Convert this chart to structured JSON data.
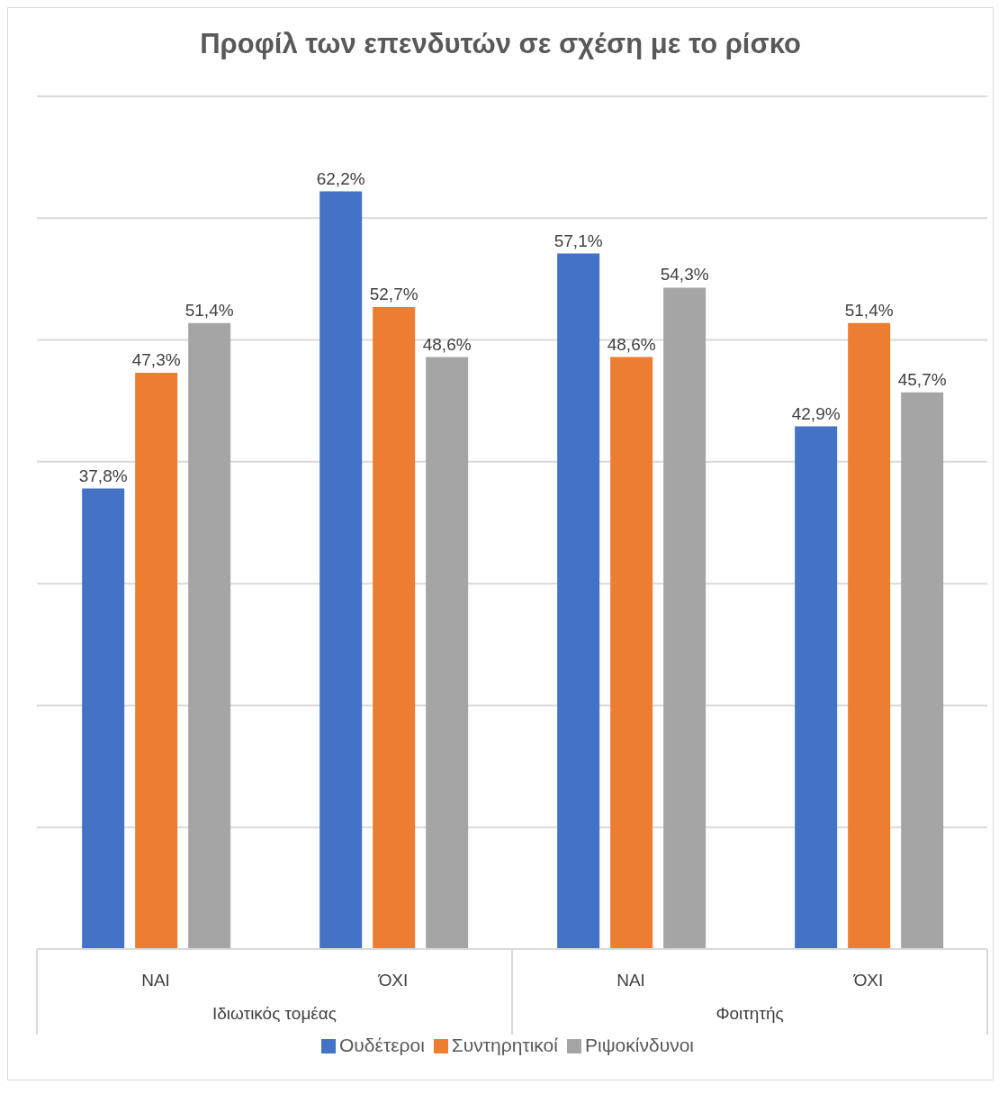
{
  "chart_data": {
    "type": "bar",
    "title": "Προφίλ των επενδυτών σε σχέση με το ρίσκο",
    "categories": [
      "ΝΑΙ",
      "ΌΧΙ",
      "ΝΑΙ",
      "ΌΧΙ"
    ],
    "series": [
      {
        "name": "Ουδέτεροι",
        "color": "#4472c4",
        "values": [
          37.8,
          62.2,
          57.1,
          42.9
        ],
        "value_labels": [
          "37,8%",
          "62,2%",
          "57,1%",
          "42,9%"
        ]
      },
      {
        "name": "Συντηρητικοί",
        "color": "#ed7d31",
        "values": [
          47.3,
          52.7,
          48.6,
          51.4
        ],
        "value_labels": [
          "47,3%",
          "52,7%",
          "48,6%",
          "51,4%"
        ]
      },
      {
        "name": "Ριψοκίνδυνοι",
        "color": "#a5a5a5",
        "values": [
          51.4,
          48.6,
          54.3,
          45.7
        ],
        "value_labels": [
          "51,4%",
          "48,6%",
          "54,3%",
          "45,7%"
        ]
      }
    ],
    "annotations": [
      "Ιδιωτικός τομέας",
      "Φοιτητής"
    ],
    "ylim": [
      0,
      70
    ],
    "yticks": [
      {
        "value": 0,
        "label": null
      },
      {
        "value": 10,
        "label": null
      },
      {
        "value": 20,
        "label": null
      },
      {
        "value": 30,
        "label": null
      },
      {
        "value": 40,
        "label": null
      },
      {
        "value": 50,
        "label": null
      },
      {
        "value": 60,
        "label": null
      },
      {
        "value": 70,
        "label": null
      }
    ],
    "tick_labels": "x",
    "grid": "y",
    "legend": "bottom"
  }
}
